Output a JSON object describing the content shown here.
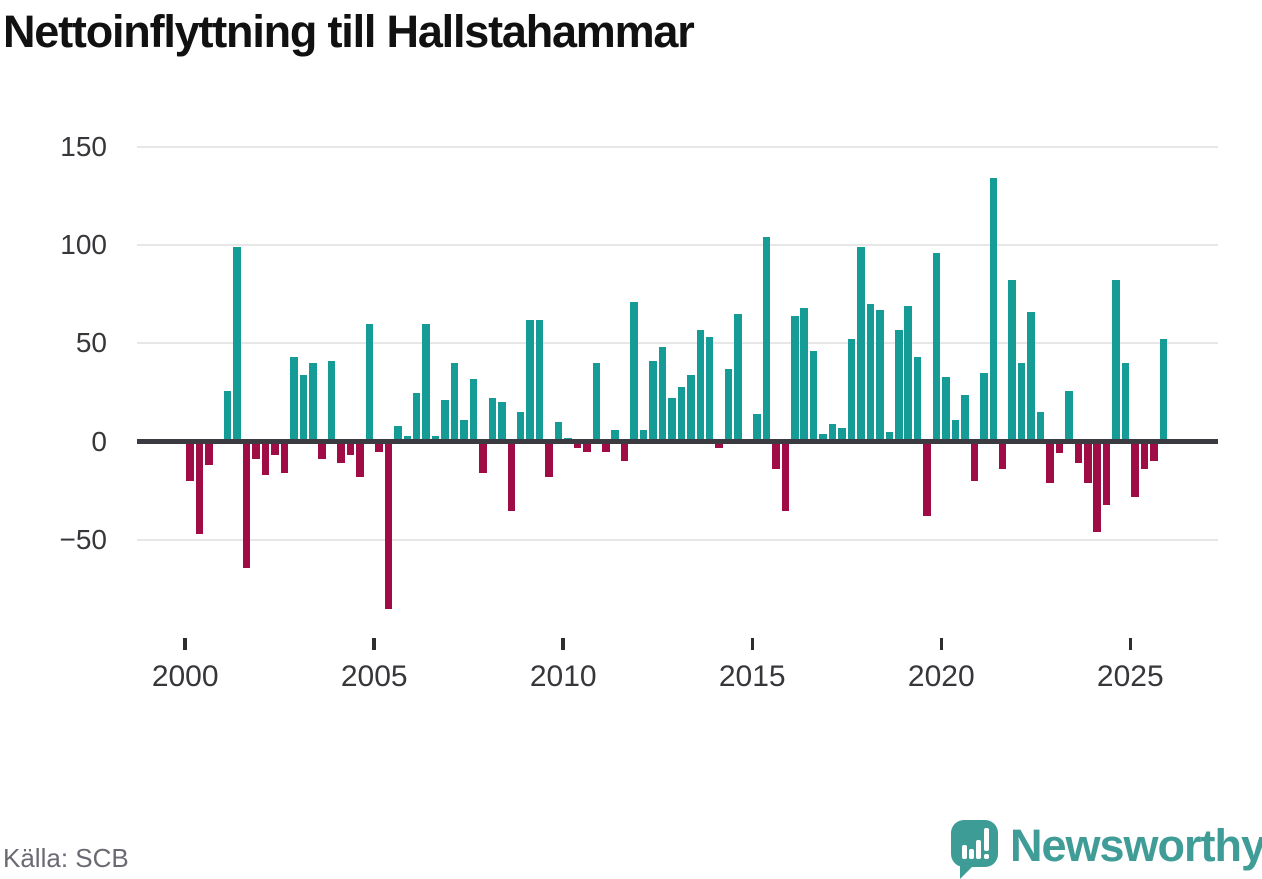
{
  "title": "Nettoinflyttning till Hallstahammar",
  "source": "Källa: SCB",
  "logo": {
    "brand": "Newsworthy",
    "icon": "newsworthy-speech-bubble-bar-chart-icon"
  },
  "colors": {
    "positive": "#169c96",
    "negative": "#a00d46",
    "axis": "#3a3a40",
    "grid": "#e7e7e7",
    "tick_label": "#37373b",
    "source_text": "#6a6a73",
    "brand_teal": "#3f9c96",
    "title_text": "#111111",
    "background": "#ffffff"
  },
  "chart_data": {
    "type": "bar",
    "title": "Nettoinflyttning till Hallstahammar",
    "frequency": "quarterly",
    "x_start": {
      "year": 2000,
      "quarter": 1
    },
    "x_end": {
      "year": 2025,
      "quarter": 4
    },
    "values": [
      -20,
      -47,
      -12,
      0,
      26,
      99,
      -64,
      -9,
      -17,
      -7,
      -16,
      43,
      34,
      40,
      -9,
      41,
      -11,
      -7,
      -18,
      60,
      -5,
      -85,
      8,
      3,
      25,
      60,
      3,
      21,
      40,
      11,
      32,
      -16,
      22,
      20,
      -35,
      15,
      62,
      62,
      -18,
      10,
      2,
      -3,
      -5,
      40,
      -5,
      6,
      -10,
      71,
      6,
      41,
      48,
      22,
      28,
      34,
      57,
      53,
      -3,
      37,
      65,
      0,
      14,
      104,
      -14,
      -35,
      64,
      68,
      46,
      4,
      9,
      7,
      52,
      99,
      70,
      67,
      5,
      57,
      69,
      43,
      -38,
      96,
      33,
      11,
      24,
      -20,
      35,
      134,
      -14,
      82,
      40,
      66,
      15,
      -21,
      -6,
      26,
      -11,
      -21,
      -46,
      -32,
      82,
      40,
      -28,
      -14,
      -10,
      52
    ],
    "positive_color": "#169c96",
    "negative_color": "#a00d46",
    "y_axis": {
      "ticks": [
        150,
        100,
        50,
        0,
        -50
      ],
      "tick_labels": [
        "150",
        "100",
        "50",
        "0",
        "−50"
      ],
      "range": [
        -90,
        155
      ],
      "gridlines": true
    },
    "x_axis": {
      "tick_years": [
        2000,
        2005,
        2010,
        2015,
        2020,
        2025
      ],
      "tick_year_labels": [
        "2000",
        "2005",
        "2010",
        "2015",
        "2020",
        "2025"
      ]
    },
    "legend": "none"
  }
}
